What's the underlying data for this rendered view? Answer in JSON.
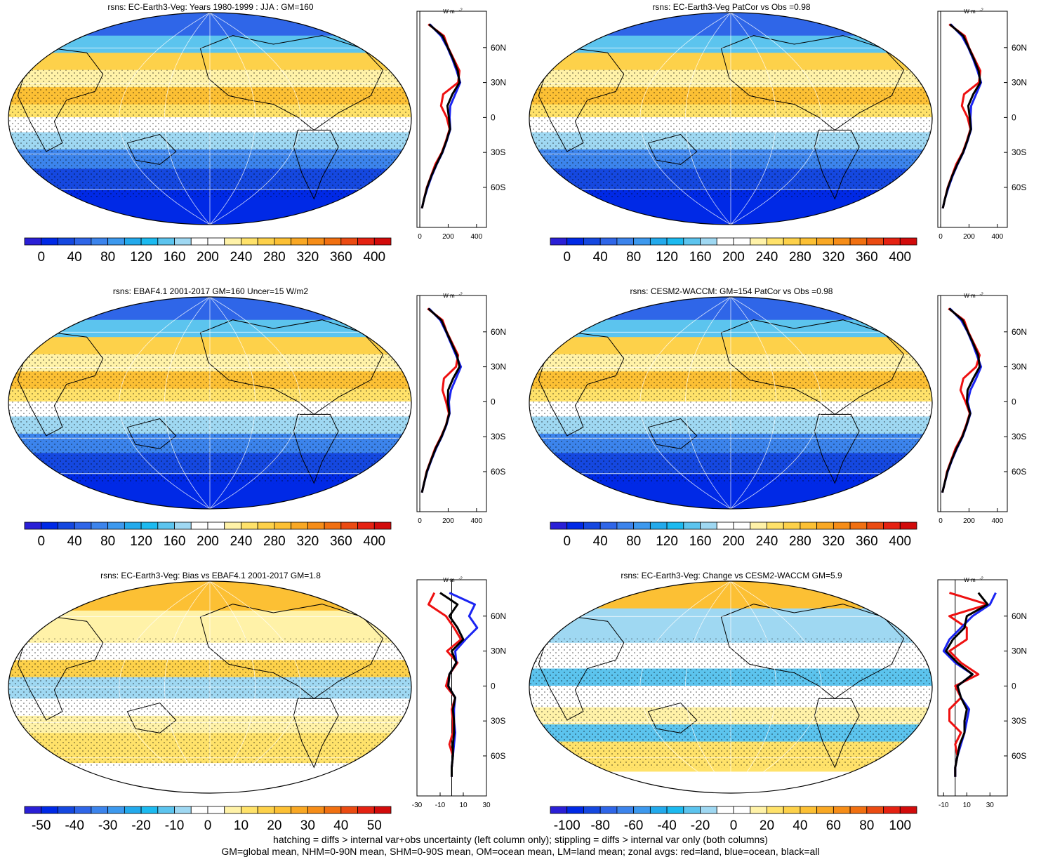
{
  "footer": {
    "line1": "hatching = diffs > internal var+obs uncertainty (left column only); stippling = diffs > internal var only (both columns)",
    "line2": "GM=global mean, NHM=0-90N mean, SHM=0-90S mean, OM=ocean mean, LM=land mean; zonal avgs: red=land, blue=ocean, black=all"
  },
  "chart_data": [
    {
      "type": "heatmap",
      "title": "rsns: EC-Earth3-Veg: Years 1980-1999 : JJA : GM=160",
      "colorbar_ticks": [
        "0",
        "40",
        "80",
        "120",
        "160",
        "200",
        "240",
        "280",
        "320",
        "360",
        "400"
      ],
      "colorbar_range": [
        0,
        420
      ],
      "zonal_profile": {
        "unit": "W m",
        "unit_exp": "-2",
        "lat_ticks": [
          "60N",
          "30N",
          "0",
          "30S",
          "60S"
        ],
        "x_ticks": [
          "0",
          "200",
          "400"
        ],
        "x_range": [
          -20,
          470
        ],
        "lat": [
          -78,
          -70,
          -60,
          -50,
          -40,
          -30,
          -20,
          -10,
          0,
          10,
          20,
          30,
          40,
          50,
          60,
          70,
          80
        ],
        "land": [
          15,
          30,
          50,
          80,
          110,
          155,
          185,
          210,
          190,
          150,
          165,
          270,
          280,
          240,
          200,
          170,
          60
        ],
        "ocean": [
          15,
          30,
          55,
          85,
          120,
          160,
          190,
          215,
          210,
          215,
          250,
          285,
          260,
          230,
          195,
          150,
          70
        ],
        "all": [
          15,
          30,
          52,
          82,
          118,
          158,
          188,
          213,
          205,
          195,
          230,
          280,
          268,
          235,
          198,
          160,
          65
        ]
      }
    },
    {
      "type": "heatmap",
      "title": "rsns: EC-Earth3-Veg PatCor vs Obs =0.98",
      "colorbar_ticks": [
        "0",
        "40",
        "80",
        "120",
        "160",
        "200",
        "240",
        "280",
        "320",
        "360",
        "400"
      ],
      "colorbar_range": [
        0,
        420
      ],
      "zonal_profile": {
        "unit": "W m",
        "unit_exp": "-2",
        "lat_ticks": [
          "60N",
          "30N",
          "0",
          "30S",
          "60S"
        ],
        "x_ticks": [
          "0",
          "200",
          "400"
        ],
        "x_range": [
          -20,
          470
        ],
        "lat": [
          -78,
          -70,
          -60,
          -50,
          -40,
          -30,
          -20,
          -10,
          0,
          10,
          20,
          30,
          40,
          50,
          60,
          70,
          80
        ],
        "land": [
          15,
          30,
          50,
          80,
          110,
          155,
          185,
          210,
          190,
          150,
          165,
          270,
          280,
          240,
          200,
          170,
          60
        ],
        "ocean": [
          15,
          30,
          55,
          85,
          120,
          160,
          190,
          215,
          210,
          215,
          250,
          285,
          260,
          230,
          195,
          150,
          70
        ],
        "all": [
          15,
          30,
          52,
          82,
          118,
          158,
          188,
          213,
          205,
          195,
          230,
          280,
          268,
          235,
          198,
          160,
          65
        ]
      }
    },
    {
      "type": "heatmap",
      "title": "rsns: EBAF4.1 2001-2017 GM=160 Uncer=15 W/m2",
      "colorbar_ticks": [
        "0",
        "40",
        "80",
        "120",
        "160",
        "200",
        "240",
        "280",
        "320",
        "360",
        "400"
      ],
      "colorbar_range": [
        0,
        420
      ],
      "zonal_profile": {
        "unit": "W m",
        "unit_exp": "-2",
        "lat_ticks": [
          "60N",
          "30N",
          "0",
          "30S",
          "60S"
        ],
        "x_ticks": [
          "0",
          "200",
          "400"
        ],
        "x_range": [
          -20,
          470
        ],
        "lat": [
          -78,
          -70,
          -60,
          -50,
          -40,
          -30,
          -20,
          -10,
          0,
          10,
          20,
          30,
          40,
          50,
          60,
          70,
          80
        ],
        "land": [
          15,
          30,
          48,
          78,
          108,
          150,
          185,
          205,
          185,
          160,
          170,
          255,
          270,
          230,
          190,
          160,
          55
        ],
        "ocean": [
          15,
          30,
          52,
          82,
          115,
          155,
          188,
          210,
          205,
          220,
          255,
          290,
          255,
          220,
          185,
          145,
          65
        ],
        "all": [
          15,
          30,
          50,
          80,
          112,
          153,
          186,
          208,
          198,
          200,
          235,
          280,
          262,
          225,
          188,
          152,
          60
        ]
      }
    },
    {
      "type": "heatmap",
      "title": "rsns: CESM2-WACCM: GM=154 PatCor vs Obs =0.98",
      "colorbar_ticks": [
        "0",
        "40",
        "80",
        "120",
        "160",
        "200",
        "240",
        "280",
        "320",
        "360",
        "400"
      ],
      "colorbar_range": [
        0,
        420
      ],
      "zonal_profile": {
        "unit": "W m",
        "unit_exp": "-2",
        "lat_ticks": [
          "60N",
          "30N",
          "0",
          "30S",
          "60S"
        ],
        "x_ticks": [
          "0",
          "200",
          "400"
        ],
        "x_range": [
          -20,
          470
        ],
        "lat": [
          -78,
          -70,
          -60,
          -50,
          -40,
          -30,
          -20,
          -10,
          0,
          10,
          20,
          30,
          40,
          50,
          60,
          70,
          80
        ],
        "land": [
          12,
          28,
          45,
          75,
          105,
          150,
          180,
          205,
          175,
          140,
          160,
          250,
          275,
          235,
          195,
          165,
          55
        ],
        "ocean": [
          12,
          28,
          50,
          80,
          115,
          155,
          185,
          210,
          190,
          210,
          250,
          285,
          255,
          225,
          190,
          145,
          65
        ],
        "all": [
          12,
          28,
          48,
          78,
          112,
          153,
          183,
          208,
          185,
          190,
          230,
          275,
          265,
          230,
          192,
          155,
          60
        ]
      }
    },
    {
      "type": "heatmap",
      "title": "rsns: EC-Earth3-Veg: Bias vs EBAF4.1 2001-2017 GM=1.8",
      "colorbar_ticks": [
        "-50",
        "-40",
        "-30",
        "-20",
        "-10",
        "0",
        "10",
        "20",
        "30",
        "40",
        "50"
      ],
      "colorbar_range": [
        -55,
        55
      ],
      "zonal_profile": {
        "unit": "W m",
        "unit_exp": "-2",
        "lat_ticks": [
          "60N",
          "30N",
          "0",
          "30S",
          "60S"
        ],
        "x_ticks": [
          "-30",
          "-10",
          "10",
          "30"
        ],
        "x_range": [
          -30,
          30
        ],
        "lat": [
          -78,
          -70,
          -60,
          -50,
          -40,
          -30,
          -20,
          -10,
          0,
          10,
          20,
          30,
          40,
          50,
          60,
          70,
          80
        ],
        "land": [
          0,
          0,
          1,
          -2,
          1,
          1,
          0,
          3,
          -5,
          -2,
          5,
          -4,
          8,
          2,
          -5,
          -20,
          -15
        ],
        "ocean": [
          0,
          0,
          1,
          2,
          3,
          2,
          2,
          3,
          -3,
          -2,
          4,
          3,
          12,
          22,
          15,
          20,
          -2
        ],
        "all": [
          0,
          0,
          1,
          1,
          2,
          2,
          1,
          3,
          -3,
          -2,
          4,
          0,
          10,
          5,
          -2,
          5,
          -10
        ]
      }
    },
    {
      "type": "heatmap",
      "title": "rsns: EC-Earth3-Veg: Change vs CESM2-WACCM GM=5.9",
      "colorbar_ticks": [
        "-100",
        "-80",
        "-60",
        "-40",
        "-20",
        "0",
        "20",
        "40",
        "60",
        "80",
        "100"
      ],
      "colorbar_range": [
        -110,
        110
      ],
      "zonal_profile": {
        "unit": "W m",
        "unit_exp": "-2",
        "lat_ticks": [
          "60N",
          "30N",
          "0",
          "30S",
          "60S"
        ],
        "x_ticks": [
          "-10",
          "10",
          "30"
        ],
        "x_range": [
          -15,
          45
        ],
        "lat": [
          -78,
          -70,
          -60,
          -50,
          -40,
          -30,
          -20,
          -10,
          0,
          10,
          20,
          30,
          40,
          50,
          60,
          70,
          80
        ],
        "land": [
          0,
          0,
          2,
          0,
          5,
          -5,
          -5,
          5,
          0,
          20,
          5,
          -5,
          10,
          10,
          -5,
          28,
          -5
        ],
        "ocean": [
          0,
          0,
          2,
          5,
          8,
          10,
          12,
          5,
          2,
          15,
          0,
          -10,
          -5,
          5,
          15,
          30,
          35
        ],
        "all": [
          0,
          0,
          2,
          4,
          8,
          8,
          10,
          5,
          2,
          15,
          2,
          -8,
          -2,
          8,
          10,
          28,
          20
        ]
      }
    }
  ]
}
